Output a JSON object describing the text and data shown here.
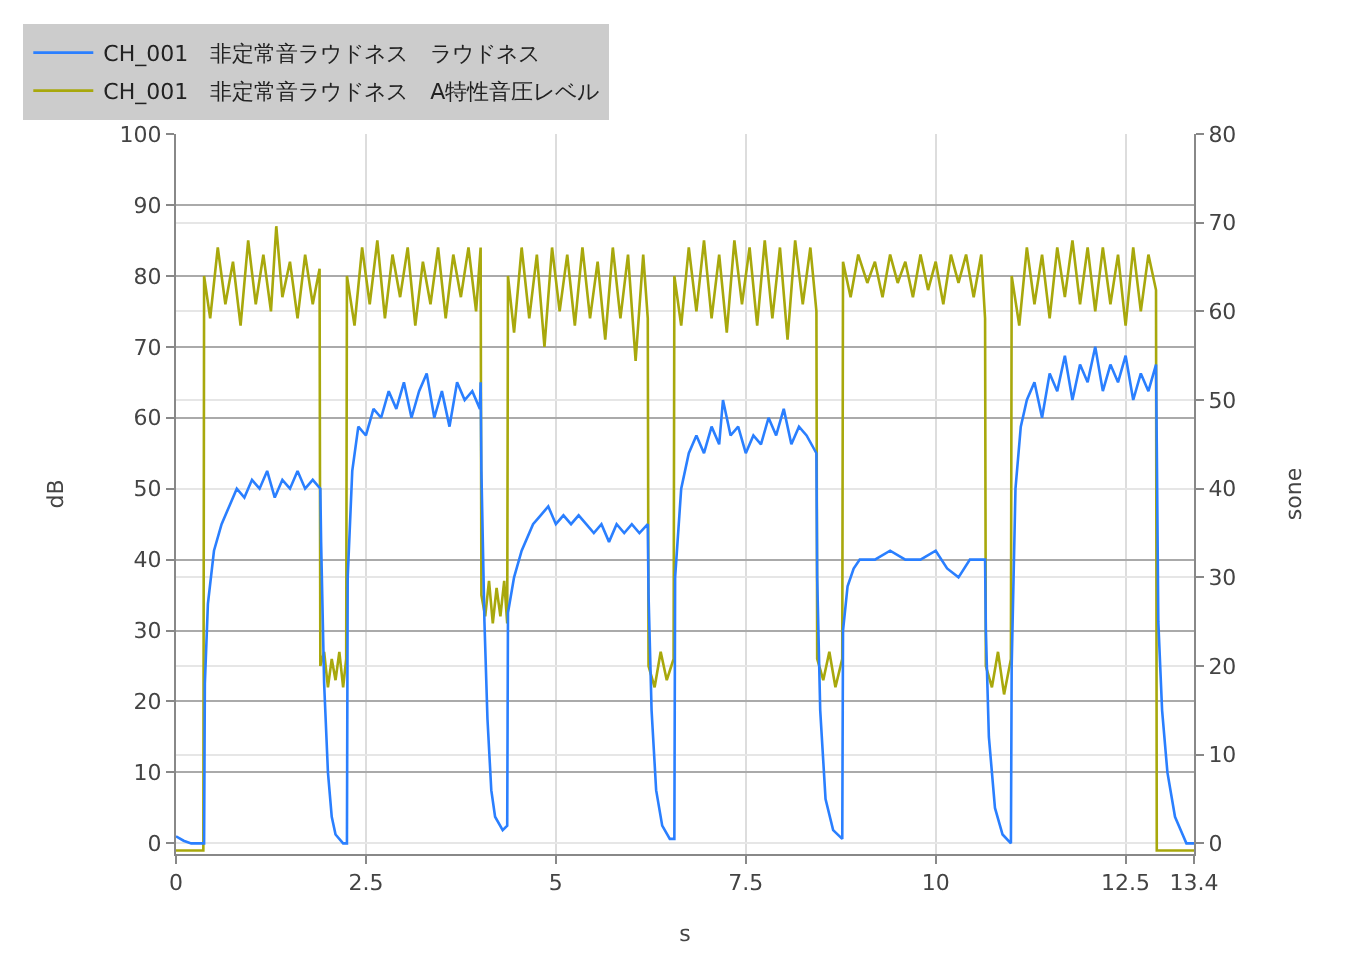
{
  "chart_data": {
    "type": "line",
    "xlabel": "s",
    "ylabel": "dB",
    "y2label": "sone",
    "xlim": [
      0,
      13.4
    ],
    "xticks": [
      0,
      2.5,
      5,
      7.5,
      10,
      12.5,
      13.4
    ],
    "ylim": [
      -1.5,
      100
    ],
    "yticks": [
      0,
      10,
      20,
      30,
      40,
      50,
      60,
      70,
      80,
      90,
      100
    ],
    "y2lim": [
      -1.2,
      80
    ],
    "y2ticks": [
      0,
      10,
      20,
      30,
      40,
      50,
      60,
      70,
      80
    ],
    "grid": true,
    "legend": "top",
    "series": [
      {
        "name": "CH_001　非定常音ラウドネス　ラウドネス",
        "color": "#2a7fff",
        "axis": "y2",
        "x": [
          0,
          0.1,
          0.2,
          0.37,
          0.38,
          0.42,
          0.5,
          0.6,
          0.7,
          0.8,
          0.9,
          1.0,
          1.1,
          1.2,
          1.3,
          1.4,
          1.5,
          1.6,
          1.7,
          1.8,
          1.9,
          1.91,
          1.95,
          2.0,
          2.05,
          2.1,
          2.2,
          2.25,
          2.26,
          2.32,
          2.4,
          2.5,
          2.6,
          2.7,
          2.8,
          2.9,
          3.0,
          3.1,
          3.2,
          3.3,
          3.4,
          3.5,
          3.6,
          3.7,
          3.8,
          3.9,
          4.0,
          4.01,
          4.02,
          4.06,
          4.1,
          4.15,
          4.2,
          4.3,
          4.36,
          4.37,
          4.45,
          4.55,
          4.7,
          4.8,
          4.9,
          5.0,
          5.1,
          5.2,
          5.3,
          5.4,
          5.5,
          5.6,
          5.7,
          5.8,
          5.9,
          6.0,
          6.1,
          6.21,
          6.22,
          6.26,
          6.32,
          6.4,
          6.5,
          6.56,
          6.57,
          6.65,
          6.75,
          6.85,
          6.95,
          7.05,
          7.15,
          7.2,
          7.3,
          7.4,
          7.5,
          7.6,
          7.7,
          7.8,
          7.9,
          8.0,
          8.1,
          8.2,
          8.3,
          8.43,
          8.44,
          8.48,
          8.55,
          8.65,
          8.77,
          8.78,
          8.84,
          8.92,
          9.0,
          9.2,
          9.4,
          9.6,
          9.8,
          10.0,
          10.15,
          10.3,
          10.45,
          10.65,
          10.66,
          10.7,
          10.78,
          10.88,
          10.99,
          11.0,
          11.05,
          11.12,
          11.2,
          11.3,
          11.4,
          11.5,
          11.6,
          11.7,
          11.8,
          11.9,
          12.0,
          12.1,
          12.2,
          12.3,
          12.4,
          12.5,
          12.6,
          12.7,
          12.8,
          12.9,
          12.91,
          12.93,
          12.98,
          13.05,
          13.15,
          13.25,
          13.3,
          13.4
        ],
        "values": [
          0.8,
          0.3,
          0,
          0,
          18,
          27,
          33,
          36,
          38,
          40,
          39,
          41,
          40,
          42,
          39,
          41,
          40,
          42,
          40,
          41,
          40,
          34,
          18,
          8,
          3,
          1,
          0,
          0,
          30,
          42,
          47,
          46,
          49,
          48,
          51,
          49,
          52,
          48,
          51,
          53,
          48,
          51,
          47,
          52,
          50,
          51,
          49,
          52,
          42,
          25,
          14,
          6,
          3,
          1.5,
          2,
          26,
          30,
          33,
          36,
          37,
          38,
          36,
          37,
          36,
          37,
          36,
          35,
          36,
          34,
          36,
          35,
          36,
          35,
          36,
          28,
          15,
          6,
          2,
          0.5,
          0.5,
          30,
          40,
          44,
          46,
          44,
          47,
          45,
          50,
          46,
          47,
          44,
          46,
          45,
          48,
          46,
          49,
          45,
          47,
          46,
          44,
          30,
          15,
          5,
          1.5,
          0.5,
          24,
          29,
          31,
          32,
          32,
          33,
          32,
          32,
          33,
          31,
          30,
          32,
          32,
          24,
          12,
          4,
          1,
          0,
          20,
          40,
          47,
          50,
          52,
          48,
          53,
          51,
          55,
          50,
          54,
          52,
          56,
          51,
          54,
          52,
          55,
          50,
          53,
          51,
          54,
          45,
          25,
          15,
          8,
          3,
          1,
          0,
          0
        ]
      },
      {
        "name": "CH_001　非定常音ラウドネス　A特性音圧レベル",
        "color": "#a8a80c",
        "x": [
          0,
          0.36,
          0.37,
          0.45,
          0.55,
          0.65,
          0.75,
          0.85,
          0.95,
          1.05,
          1.15,
          1.25,
          1.32,
          1.4,
          1.5,
          1.6,
          1.7,
          1.8,
          1.89,
          1.9,
          1.95,
          2.0,
          2.05,
          2.1,
          2.15,
          2.2,
          2.24,
          2.25,
          2.35,
          2.45,
          2.55,
          2.65,
          2.75,
          2.85,
          2.95,
          3.05,
          3.15,
          3.25,
          3.35,
          3.45,
          3.55,
          3.65,
          3.75,
          3.85,
          3.95,
          4.01,
          4.02,
          4.07,
          4.12,
          4.17,
          4.22,
          4.27,
          4.32,
          4.36,
          4.37,
          4.45,
          4.55,
          4.65,
          4.75,
          4.85,
          4.95,
          5.05,
          5.15,
          5.25,
          5.35,
          5.45,
          5.55,
          5.65,
          5.75,
          5.85,
          5.95,
          6.05,
          6.15,
          6.21,
          6.22,
          6.3,
          6.38,
          6.46,
          6.55,
          6.56,
          6.65,
          6.75,
          6.85,
          6.95,
          7.05,
          7.15,
          7.25,
          7.35,
          7.45,
          7.55,
          7.65,
          7.75,
          7.85,
          7.95,
          8.05,
          8.15,
          8.25,
          8.35,
          8.43,
          8.44,
          8.52,
          8.6,
          8.68,
          8.77,
          8.78,
          8.88,
          8.98,
          9.1,
          9.2,
          9.3,
          9.4,
          9.5,
          9.6,
          9.7,
          9.8,
          9.9,
          10.0,
          10.1,
          10.2,
          10.3,
          10.4,
          10.5,
          10.6,
          10.65,
          10.66,
          10.74,
          10.82,
          10.9,
          10.99,
          11.0,
          11.1,
          11.2,
          11.3,
          11.4,
          11.5,
          11.6,
          11.7,
          11.8,
          11.9,
          12.0,
          12.1,
          12.2,
          12.3,
          12.4,
          12.5,
          12.6,
          12.7,
          12.8,
          12.9,
          12.91,
          13.4
        ],
        "values": [
          -1,
          -1,
          80,
          74,
          84,
          76,
          82,
          73,
          85,
          76,
          83,
          75,
          87,
          77,
          82,
          74,
          83,
          76,
          81,
          25,
          27,
          22,
          26,
          23,
          27,
          22,
          26,
          80,
          73,
          84,
          76,
          85,
          74,
          83,
          77,
          84,
          73,
          82,
          76,
          84,
          74,
          83,
          77,
          84,
          75,
          84,
          35,
          32,
          37,
          31,
          36,
          32,
          37,
          31,
          80,
          72,
          84,
          74,
          83,
          70,
          84,
          75,
          83,
          73,
          84,
          74,
          82,
          71,
          84,
          74,
          83,
          68,
          83,
          74,
          25,
          22,
          27,
          23,
          26,
          80,
          73,
          84,
          75,
          85,
          74,
          83,
          72,
          85,
          76,
          84,
          73,
          85,
          74,
          84,
          71,
          85,
          76,
          84,
          75,
          26,
          23,
          27,
          22,
          26,
          82,
          77,
          83,
          79,
          82,
          77,
          83,
          79,
          82,
          77,
          83,
          78,
          82,
          76,
          83,
          79,
          83,
          77,
          83,
          74,
          25,
          22,
          27,
          21,
          26,
          80,
          73,
          84,
          76,
          83,
          74,
          84,
          77,
          85,
          76,
          84,
          75,
          84,
          76,
          83,
          73,
          84,
          75,
          83,
          78,
          -1,
          -1
        ]
      }
    ]
  }
}
